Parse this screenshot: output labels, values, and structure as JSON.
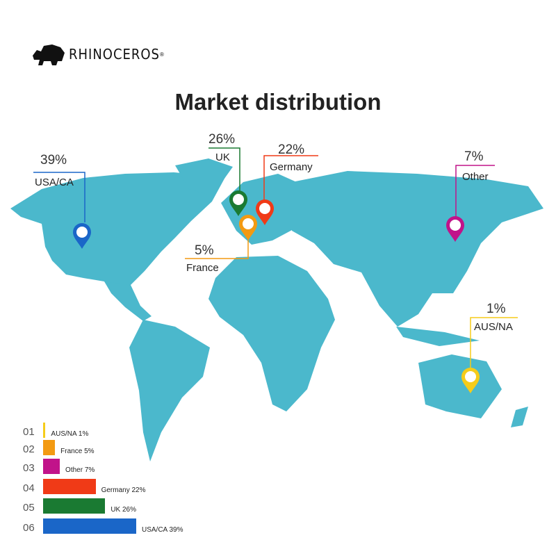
{
  "logo": {
    "text": "RHINOCEROS",
    "mark": "®"
  },
  "title": "Market distribution",
  "map_color": "#4bb8cc",
  "callouts": [
    {
      "region": "USA/CA",
      "percent": "39%",
      "color": "#1a66c8"
    },
    {
      "region": "UK",
      "percent": "26%",
      "color": "#1a7a32"
    },
    {
      "region": "Germany",
      "percent": "22%",
      "color": "#f03a17"
    },
    {
      "region": "France",
      "percent": "5%",
      "color": "#f39a12"
    },
    {
      "region": "Other",
      "percent": "7%",
      "color": "#c1138a"
    },
    {
      "region": "AUS/NA",
      "percent": "1%",
      "color": "#f5cc1a"
    }
  ],
  "bars": [
    {
      "num": "01",
      "label": "AUS/NA 1%",
      "value": 1,
      "color": "#f5cc1a"
    },
    {
      "num": "02",
      "label": "France 5%",
      "value": 5,
      "color": "#f39a12"
    },
    {
      "num": "03",
      "label": "Other 7%",
      "value": 7,
      "color": "#c1138a"
    },
    {
      "num": "04",
      "label": "Germany 22%",
      "value": 22,
      "color": "#f03a17"
    },
    {
      "num": "05",
      "label": "UK 26%",
      "value": 26,
      "color": "#1a7a32"
    },
    {
      "num": "06",
      "label": "USA/CA 39%",
      "value": 39,
      "color": "#1a66c8"
    }
  ]
}
